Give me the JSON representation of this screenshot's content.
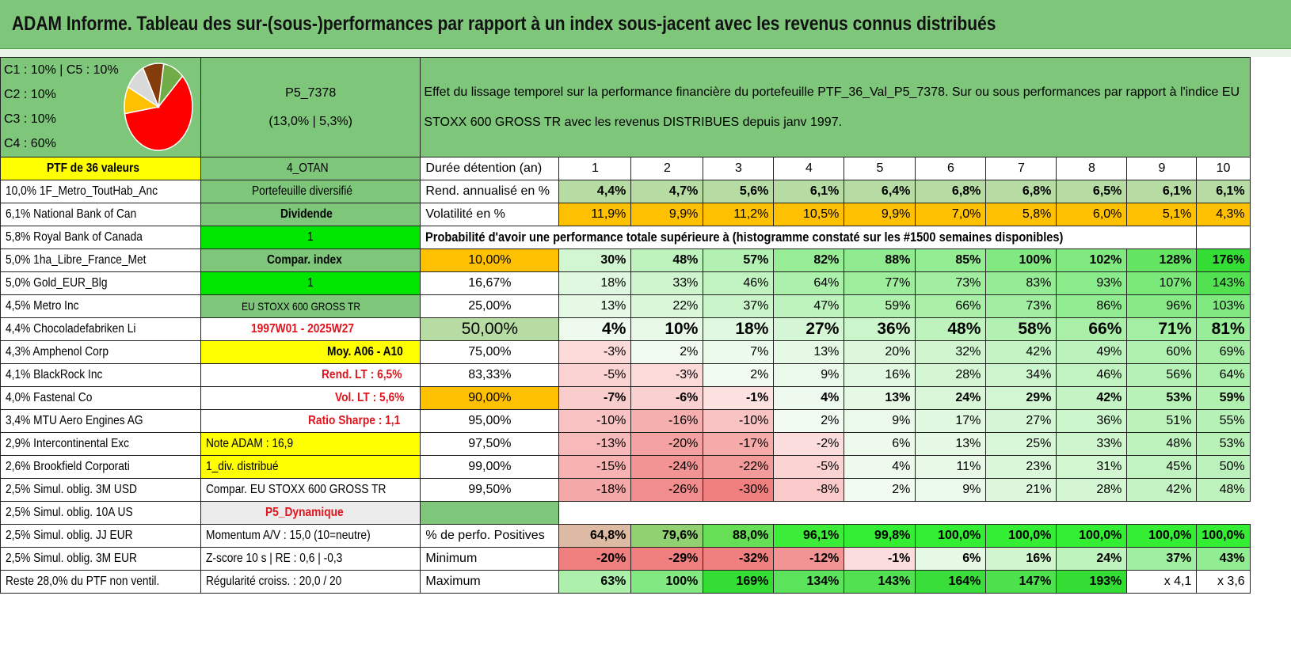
{
  "title": "ADAM Informe. Tableau des sur-(sous-)performances par rapport à un index sous-jacent avec les revenus connus distribués",
  "legend": [
    "C1 : 10% | C5 : 10%",
    "C2 : 10%",
    "C3 : 10%",
    "C4 : 60%"
  ],
  "pie_colors": [
    "#ff0000",
    "#70ad47",
    "#843c0c",
    "#d9d9d9",
    "#ffc000"
  ],
  "portfolio": {
    "name": "P5_7378",
    "stats": "(13,0% | 5,3%)"
  },
  "description": "Effet du lissage temporel sur la performance financière du portefeuille PTF_36_Val_P5_7378. Sur ou sous performances par rapport à l'indice EU STOXX 600 GROSS TR avec les revenus DISTRIBUES depuis janv 1997.",
  "holdings": [
    "PTF de 36 valeurs",
    "10,0% 1F_Metro_ToutHab_Anc",
    "6,1% National Bank of Can",
    "5,8% Royal Bank of Canada",
    "5,0% 1ha_Libre_France_Met",
    "5,0% Gold_EUR_Blg",
    "4,5% Metro Inc",
    "4,4% Chocoladefabriken Li",
    "4,3% Amphenol Corp",
    "4,1% BlackRock Inc",
    "4,0% Fastenal Co",
    "3,4% MTU Aero Engines AG",
    "2,9% Intercontinental Exc",
    "2,6% Brookfield Corporati",
    "2,5% Simul. oblig. 3M USD",
    "2,5% Simul. oblig. 10A US",
    "2,5% Simul. oblig. JJ EUR",
    "2,5% Simul. oblig. 3M EUR",
    "Reste 28,0% du PTF non ventil."
  ],
  "info": [
    "4_OTAN",
    "Portefeuille diversifié",
    "Dividende",
    "1",
    "Compar. index",
    "1",
    "EU STOXX 600 GROSS TR",
    "1997W01 - 2025W27",
    "Moy. A06 - A10",
    "Rend. LT : 6,5%",
    "Vol. LT : 5,6%",
    "Ratio Sharpe : 1,1",
    "Note ADAM : 16,9",
    "1_div. distribué",
    "Compar. EU STOXX 600 GROSS TR",
    "P5_Dynamique",
    "Momentum A/V : 15,0 (10=neutre)",
    "Z-score 10 s | RE : 0,6 | -0,3",
    "Régularité croiss. : 20,0 / 20"
  ],
  "years_label": "Durée détention (an)",
  "years": [
    "1",
    "2",
    "3",
    "4",
    "5",
    "6",
    "7",
    "8",
    "9",
    "10"
  ],
  "rend_label": "Rend. annualisé en %",
  "rend": [
    "4,4%",
    "4,7%",
    "5,6%",
    "6,1%",
    "6,4%",
    "6,8%",
    "6,8%",
    "6,5%",
    "6,1%",
    "6,1%"
  ],
  "vol_label": "Volatilité en %",
  "vol": [
    "11,9%",
    "9,9%",
    "11,2%",
    "10,5%",
    "9,9%",
    "7,0%",
    "5,8%",
    "6,0%",
    "5,1%",
    "4,3%"
  ],
  "prob_heading": "Probabilité d'avoir une performance totale supérieure à (histogramme constaté sur les #1500 semaines disponibles)",
  "quantiles": [
    {
      "label": "10,00%",
      "values": [
        "30%",
        "48%",
        "57%",
        "82%",
        "88%",
        "85%",
        "100%",
        "102%",
        "128%",
        "176%"
      ]
    },
    {
      "label": "16,67%",
      "values": [
        "18%",
        "33%",
        "46%",
        "64%",
        "77%",
        "73%",
        "83%",
        "93%",
        "107%",
        "143%"
      ]
    },
    {
      "label": "25,00%",
      "values": [
        "13%",
        "22%",
        "37%",
        "47%",
        "59%",
        "66%",
        "73%",
        "86%",
        "96%",
        "103%"
      ]
    },
    {
      "label": "50,00%",
      "values": [
        "4%",
        "10%",
        "18%",
        "27%",
        "36%",
        "48%",
        "58%",
        "66%",
        "71%",
        "81%"
      ]
    },
    {
      "label": "75,00%",
      "values": [
        "-3%",
        "2%",
        "7%",
        "13%",
        "20%",
        "32%",
        "42%",
        "49%",
        "60%",
        "69%"
      ]
    },
    {
      "label": "83,33%",
      "values": [
        "-5%",
        "-3%",
        "2%",
        "9%",
        "16%",
        "28%",
        "34%",
        "46%",
        "56%",
        "64%"
      ]
    },
    {
      "label": "90,00%",
      "values": [
        "-7%",
        "-6%",
        "-1%",
        "4%",
        "13%",
        "24%",
        "29%",
        "42%",
        "53%",
        "59%"
      ]
    },
    {
      "label": "95,00%",
      "values": [
        "-10%",
        "-16%",
        "-10%",
        "2%",
        "9%",
        "17%",
        "27%",
        "36%",
        "51%",
        "55%"
      ]
    },
    {
      "label": "97,50%",
      "values": [
        "-13%",
        "-20%",
        "-17%",
        "-2%",
        "6%",
        "13%",
        "25%",
        "33%",
        "48%",
        "53%"
      ]
    },
    {
      "label": "99,00%",
      "values": [
        "-15%",
        "-24%",
        "-22%",
        "-5%",
        "4%",
        "11%",
        "23%",
        "31%",
        "45%",
        "50%"
      ]
    },
    {
      "label": "99,50%",
      "values": [
        "-18%",
        "-26%",
        "-30%",
        "-8%",
        "2%",
        "9%",
        "21%",
        "28%",
        "42%",
        "48%"
      ]
    }
  ],
  "positives_label": "% de perfo. Positives",
  "positives": [
    "64,8%",
    "79,6%",
    "88,0%",
    "96,1%",
    "99,8%",
    "100,0%",
    "100,0%",
    "100,0%",
    "100,0%",
    "100,0%"
  ],
  "min_label": "Minimum",
  "minimum": [
    "-20%",
    "-29%",
    "-32%",
    "-12%",
    "-1%",
    "6%",
    "16%",
    "24%",
    "37%",
    "43%"
  ],
  "max_label": "Maximum",
  "maximum": [
    "63%",
    "100%",
    "169%",
    "134%",
    "143%",
    "164%",
    "147%",
    "193%",
    "x 4,1",
    "x 3,6"
  ]
}
